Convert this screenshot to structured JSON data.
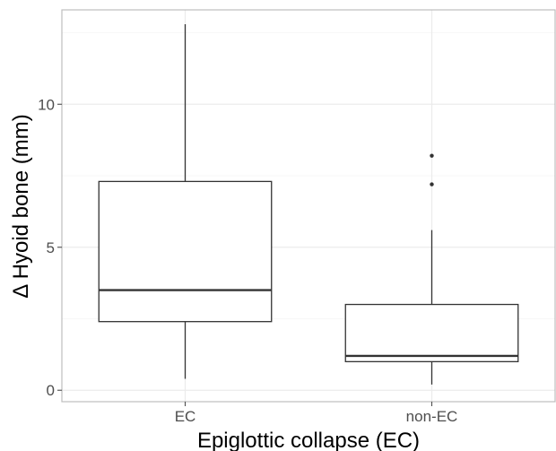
{
  "chart_data": {
    "type": "boxplot",
    "xlabel": "Epiglottic collapse (EC)",
    "ylabel": "Δ Hyoid bone (mm)",
    "ylim": [
      -0.4,
      13.3
    ],
    "yticks": [
      0,
      5,
      10
    ],
    "categories": [
      "EC",
      "non-EC"
    ],
    "boxes": [
      {
        "category": "EC",
        "whisker_low": 0.4,
        "q1": 2.4,
        "median": 3.5,
        "q3": 7.3,
        "whisker_high": 12.8,
        "outliers": []
      },
      {
        "category": "non-EC",
        "whisker_low": 0.2,
        "q1": 1.0,
        "median": 1.2,
        "q3": 3.0,
        "whisker_high": 5.6,
        "outliers": [
          7.2,
          8.2
        ]
      }
    ],
    "grid": true,
    "legend": "none",
    "colors": {
      "box_stroke": "#333333",
      "box_fill": "#ffffff",
      "grid_major": "#ebebeb",
      "grid_minor": "#f5f5f5",
      "panel_border": "#bdbdbd",
      "tick_text": "#4d4d4d",
      "title_text": "#000000"
    }
  }
}
